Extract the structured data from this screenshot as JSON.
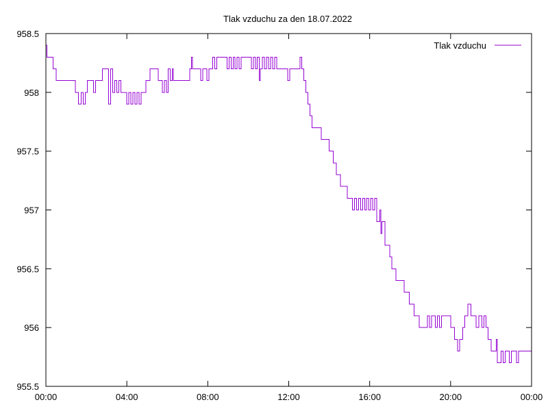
{
  "colors": {
    "series": "#9400d3",
    "frame": "#000000",
    "background": "#ffffff"
  },
  "chart_data": {
    "type": "line",
    "title": "Tlak vzduchu za den 18.07.2022",
    "xlabel": "",
    "ylabel": "",
    "x_unit": "hours",
    "xlim": [
      0,
      24
    ],
    "ylim": [
      955.5,
      958.5
    ],
    "grid": false,
    "legend_position": "top-right",
    "x_ticks": [
      {
        "value": 0,
        "label": "00:00"
      },
      {
        "value": 4,
        "label": "04:00"
      },
      {
        "value": 8,
        "label": "08:00"
      },
      {
        "value": 12,
        "label": "12:00"
      },
      {
        "value": 16,
        "label": "16:00"
      },
      {
        "value": 20,
        "label": "20:00"
      },
      {
        "value": 24,
        "label": "00:00"
      }
    ],
    "y_ticks": [
      {
        "value": 955.5,
        "label": "955.5"
      },
      {
        "value": 956,
        "label": "956"
      },
      {
        "value": 956.5,
        "label": "956.5"
      },
      {
        "value": 957,
        "label": "957"
      },
      {
        "value": 957.5,
        "label": "957.5"
      },
      {
        "value": 958,
        "label": "958"
      },
      {
        "value": 958.5,
        "label": "958.5"
      }
    ],
    "series": [
      {
        "name": "Tlak vzduchu",
        "points": [
          [
            0.0,
            958.4
          ],
          [
            0.05,
            958.3
          ],
          [
            0.3,
            958.3
          ],
          [
            0.35,
            958.2
          ],
          [
            0.45,
            958.2
          ],
          [
            0.5,
            958.1
          ],
          [
            1.4,
            958.1
          ],
          [
            1.45,
            958.0
          ],
          [
            1.6,
            957.9
          ],
          [
            1.75,
            958.0
          ],
          [
            1.85,
            957.9
          ],
          [
            1.95,
            958.0
          ],
          [
            2.05,
            958.1
          ],
          [
            2.3,
            958.1
          ],
          [
            2.35,
            958.0
          ],
          [
            2.45,
            958.1
          ],
          [
            2.75,
            958.1
          ],
          [
            2.8,
            958.2
          ],
          [
            3.05,
            958.2
          ],
          [
            3.1,
            957.9
          ],
          [
            3.2,
            958.2
          ],
          [
            3.3,
            958.0
          ],
          [
            3.4,
            958.1
          ],
          [
            3.5,
            958.0
          ],
          [
            3.6,
            958.1
          ],
          [
            3.7,
            958.0
          ],
          [
            3.9,
            958.0
          ],
          [
            4.0,
            957.9
          ],
          [
            4.1,
            958.0
          ],
          [
            4.2,
            957.9
          ],
          [
            4.3,
            958.0
          ],
          [
            4.4,
            957.9
          ],
          [
            4.5,
            958.0
          ],
          [
            4.6,
            957.9
          ],
          [
            4.7,
            958.0
          ],
          [
            4.9,
            958.0
          ],
          [
            4.95,
            958.1
          ],
          [
            5.1,
            958.1
          ],
          [
            5.15,
            958.2
          ],
          [
            5.5,
            958.2
          ],
          [
            5.55,
            958.1
          ],
          [
            5.7,
            958.1
          ],
          [
            5.75,
            958.0
          ],
          [
            5.85,
            958.1
          ],
          [
            5.95,
            958.0
          ],
          [
            6.05,
            958.2
          ],
          [
            6.15,
            958.1
          ],
          [
            6.25,
            958.2
          ],
          [
            6.3,
            958.1
          ],
          [
            7.05,
            958.1
          ],
          [
            7.1,
            958.2
          ],
          [
            7.2,
            958.3
          ],
          [
            7.25,
            958.2
          ],
          [
            7.6,
            958.2
          ],
          [
            7.65,
            958.1
          ],
          [
            7.75,
            958.2
          ],
          [
            7.9,
            958.2
          ],
          [
            7.95,
            958.1
          ],
          [
            8.05,
            958.2
          ],
          [
            8.2,
            958.2
          ],
          [
            8.25,
            958.3
          ],
          [
            8.35,
            958.2
          ],
          [
            8.45,
            958.3
          ],
          [
            8.9,
            958.3
          ],
          [
            8.95,
            958.2
          ],
          [
            9.05,
            958.3
          ],
          [
            9.15,
            958.2
          ],
          [
            9.25,
            958.3
          ],
          [
            9.35,
            958.2
          ],
          [
            9.45,
            958.3
          ],
          [
            9.55,
            958.2
          ],
          [
            9.65,
            958.3
          ],
          [
            10.1,
            958.3
          ],
          [
            10.15,
            958.2
          ],
          [
            10.25,
            958.3
          ],
          [
            10.35,
            958.2
          ],
          [
            10.45,
            958.3
          ],
          [
            10.55,
            958.1
          ],
          [
            10.6,
            958.2
          ],
          [
            10.7,
            958.3
          ],
          [
            10.8,
            958.2
          ],
          [
            10.9,
            958.3
          ],
          [
            11.0,
            958.2
          ],
          [
            11.1,
            958.3
          ],
          [
            11.2,
            958.2
          ],
          [
            11.3,
            958.3
          ],
          [
            11.4,
            958.2
          ],
          [
            11.9,
            958.2
          ],
          [
            11.95,
            958.1
          ],
          [
            12.05,
            958.2
          ],
          [
            12.5,
            958.2
          ],
          [
            12.55,
            958.3
          ],
          [
            12.65,
            958.2
          ],
          [
            12.75,
            958.1
          ],
          [
            12.85,
            958.0
          ],
          [
            12.95,
            957.9
          ],
          [
            13.05,
            957.8
          ],
          [
            13.15,
            957.7
          ],
          [
            13.55,
            957.7
          ],
          [
            13.6,
            957.6
          ],
          [
            13.95,
            957.6
          ],
          [
            14.0,
            957.5
          ],
          [
            14.15,
            957.5
          ],
          [
            14.2,
            957.4
          ],
          [
            14.35,
            957.3
          ],
          [
            14.5,
            957.3
          ],
          [
            14.55,
            957.2
          ],
          [
            14.85,
            957.2
          ],
          [
            14.9,
            957.1
          ],
          [
            15.1,
            957.1
          ],
          [
            15.15,
            957.0
          ],
          [
            15.25,
            957.1
          ],
          [
            15.35,
            957.0
          ],
          [
            15.45,
            957.1
          ],
          [
            15.55,
            957.0
          ],
          [
            15.65,
            957.1
          ],
          [
            15.75,
            957.0
          ],
          [
            15.85,
            957.1
          ],
          [
            15.95,
            957.0
          ],
          [
            16.05,
            957.1
          ],
          [
            16.15,
            957.0
          ],
          [
            16.25,
            957.1
          ],
          [
            16.35,
            956.9
          ],
          [
            16.5,
            957.0
          ],
          [
            16.55,
            956.8
          ],
          [
            16.6,
            956.9
          ],
          [
            16.75,
            956.7
          ],
          [
            16.95,
            956.7
          ],
          [
            17.0,
            956.6
          ],
          [
            17.1,
            956.5
          ],
          [
            17.25,
            956.5
          ],
          [
            17.3,
            956.4
          ],
          [
            17.65,
            956.4
          ],
          [
            17.7,
            956.3
          ],
          [
            17.85,
            956.3
          ],
          [
            17.95,
            956.2
          ],
          [
            18.15,
            956.2
          ],
          [
            18.2,
            956.1
          ],
          [
            18.4,
            956.1
          ],
          [
            18.45,
            956.0
          ],
          [
            18.8,
            956.0
          ],
          [
            18.85,
            956.1
          ],
          [
            18.95,
            956.0
          ],
          [
            19.05,
            956.1
          ],
          [
            19.25,
            956.0
          ],
          [
            19.35,
            956.1
          ],
          [
            19.45,
            956.0
          ],
          [
            19.55,
            956.1
          ],
          [
            19.95,
            956.1
          ],
          [
            20.0,
            956.0
          ],
          [
            20.15,
            956.0
          ],
          [
            20.2,
            955.9
          ],
          [
            20.35,
            955.8
          ],
          [
            20.45,
            955.9
          ],
          [
            20.6,
            956.0
          ],
          [
            20.7,
            956.1
          ],
          [
            20.85,
            956.2
          ],
          [
            21.0,
            956.1
          ],
          [
            21.2,
            956.1
          ],
          [
            21.25,
            956.0
          ],
          [
            21.4,
            956.1
          ],
          [
            21.55,
            956.0
          ],
          [
            21.65,
            956.1
          ],
          [
            21.75,
            956.0
          ],
          [
            21.85,
            955.9
          ],
          [
            22.0,
            955.8
          ],
          [
            22.2,
            955.8
          ],
          [
            22.25,
            955.9
          ],
          [
            22.3,
            955.7
          ],
          [
            22.5,
            955.8
          ],
          [
            22.6,
            955.7
          ],
          [
            22.7,
            955.8
          ],
          [
            22.85,
            955.8
          ],
          [
            22.9,
            955.7
          ],
          [
            23.0,
            955.8
          ],
          [
            23.2,
            955.8
          ],
          [
            23.25,
            955.7
          ],
          [
            23.35,
            955.8
          ],
          [
            24.0,
            955.8
          ]
        ]
      }
    ]
  }
}
